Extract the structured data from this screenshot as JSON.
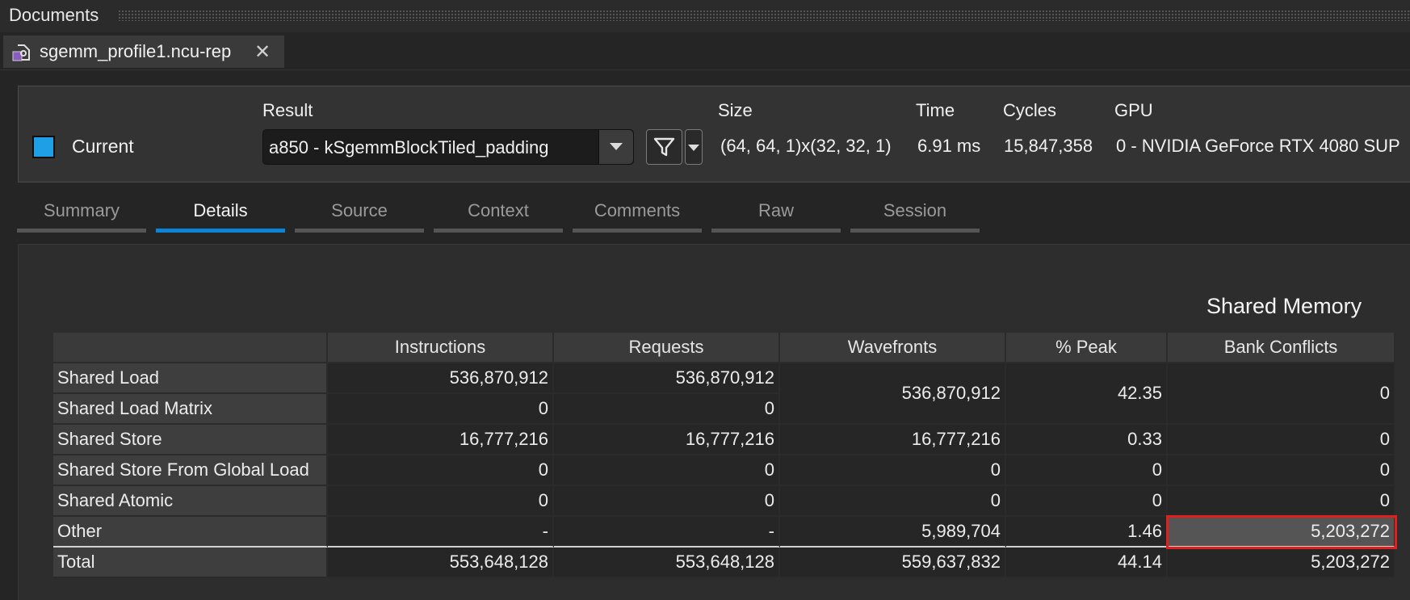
{
  "documents": {
    "title": "Documents"
  },
  "file_tab": {
    "name": "sgemm_profile1.ncu-rep",
    "close": "✕"
  },
  "header": {
    "current_label": "Current",
    "current_color": "#1e9fe6",
    "result_label": "Result",
    "result_value": "a850 - kSgemmBlockTiled_padding",
    "size_label": "Size",
    "size_value": "(64, 64, 1)x(32, 32, 1)",
    "time_label": "Time",
    "time_value": "6.91 ms",
    "cycles_label": "Cycles",
    "cycles_value": "15,847,358",
    "gpu_label": "GPU",
    "gpu_value": "0 - NVIDIA GeForce RTX 4080 SUP"
  },
  "tabs": [
    {
      "label": "Summary",
      "active": false
    },
    {
      "label": "Details",
      "active": true
    },
    {
      "label": "Source",
      "active": false
    },
    {
      "label": "Context",
      "active": false
    },
    {
      "label": "Comments",
      "active": false
    },
    {
      "label": "Raw",
      "active": false
    },
    {
      "label": "Session",
      "active": false
    }
  ],
  "accent_color": "#0a84d6",
  "highlight_color": "#e0201e",
  "shared_memory": {
    "title": "Shared Memory",
    "columns": [
      "Instructions",
      "Requests",
      "Wavefronts",
      "% Peak",
      "Bank Conflicts"
    ],
    "rows": [
      {
        "label": "Shared Load",
        "instructions": "536,870,912",
        "requests": "536,870,912",
        "wavefronts": "536,870,912",
        "peak": "42.35",
        "bank_conflicts": "0"
      },
      {
        "label": "Shared Load Matrix",
        "instructions": "0",
        "requests": "0"
      },
      {
        "label": "Shared Store",
        "instructions": "16,777,216",
        "requests": "16,777,216",
        "wavefronts": "16,777,216",
        "peak": "0.33",
        "bank_conflicts": "0"
      },
      {
        "label": "Shared Store From Global Load",
        "instructions": "0",
        "requests": "0",
        "wavefronts": "0",
        "peak": "0",
        "bank_conflicts": "0"
      },
      {
        "label": "Shared Atomic",
        "instructions": "0",
        "requests": "0",
        "wavefronts": "0",
        "peak": "0",
        "bank_conflicts": "0"
      },
      {
        "label": "Other",
        "instructions": "-",
        "requests": "-",
        "wavefronts": "5,989,704",
        "peak": "1.46",
        "bank_conflicts": "5,203,272"
      },
      {
        "label": "Total",
        "instructions": "553,648,128",
        "requests": "553,648,128",
        "wavefronts": "559,637,832",
        "peak": "44.14",
        "bank_conflicts": "5,203,272"
      }
    ]
  }
}
